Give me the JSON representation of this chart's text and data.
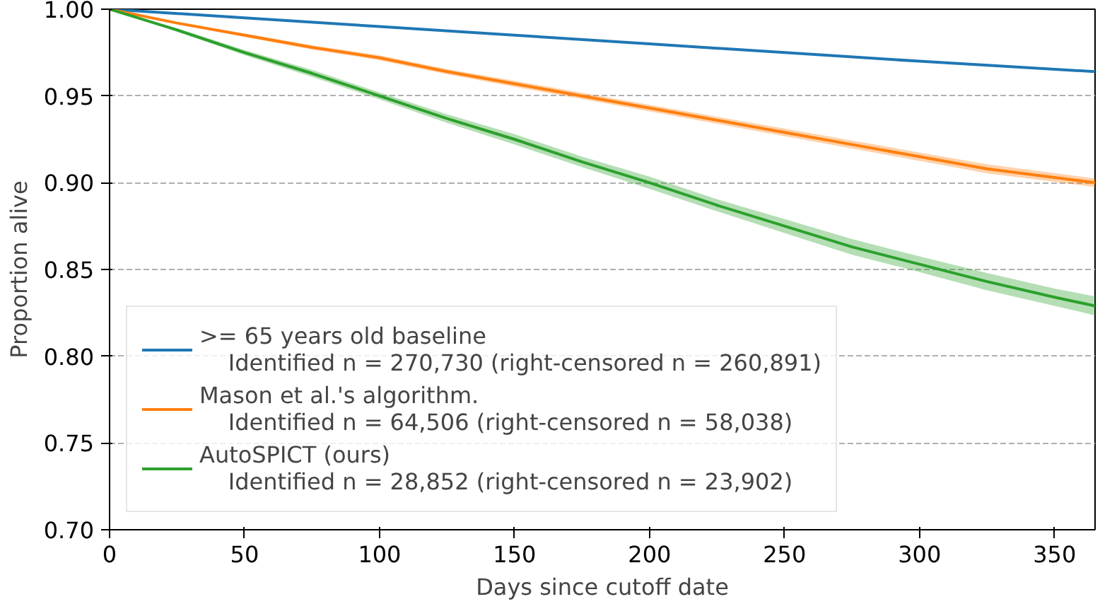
{
  "chart_data": {
    "type": "line",
    "xlabel": "Days since cutoff date",
    "ylabel": "Proportion alive",
    "xlim": [
      0,
      365
    ],
    "ylim": [
      0.7,
      1.0
    ],
    "xticks": [
      0,
      50,
      100,
      150,
      200,
      250,
      300,
      350
    ],
    "yticks": [
      {
        "value": 0.7,
        "label": "0.70"
      },
      {
        "value": 0.75,
        "label": "0.75"
      },
      {
        "value": 0.8,
        "label": "0.80"
      },
      {
        "value": 0.85,
        "label": "0.85"
      },
      {
        "value": 0.9,
        "label": "0.90"
      },
      {
        "value": 0.95,
        "label": "0.95"
      },
      {
        "value": 1.0,
        "label": "1.00"
      }
    ],
    "grid": "y",
    "legend": "bottom left",
    "series": [
      {
        "name": ">= 65 years old baseline\n    Identified n = 270,730 (right-censored n = 260,891)",
        "color": "#1f77b4",
        "x": [
          0,
          50,
          100,
          150,
          200,
          250,
          300,
          365
        ],
        "values": [
          1.0,
          0.995,
          0.99,
          0.985,
          0.98,
          0.975,
          0.97,
          0.964
        ]
      },
      {
        "name": "Mason et al.'s algorithm.\n    Identified n = 64,506 (right-censored n = 58,038)",
        "color": "#ff7f0e",
        "x": [
          0,
          25,
          50,
          75,
          100,
          125,
          150,
          175,
          200,
          225,
          250,
          275,
          300,
          325,
          350,
          365
        ],
        "values": [
          1.0,
          0.992,
          0.985,
          0.978,
          0.972,
          0.964,
          0.957,
          0.95,
          0.943,
          0.936,
          0.929,
          0.922,
          0.915,
          0.908,
          0.903,
          0.9
        ],
        "lower": [
          1.0,
          0.9915,
          0.984,
          0.9768,
          0.9706,
          0.9625,
          0.9553,
          0.9482,
          0.9411,
          0.934,
          0.9268,
          0.9197,
          0.9126,
          0.9054,
          0.9005,
          0.8975
        ],
        "upper": [
          1.0,
          0.9925,
          0.986,
          0.9792,
          0.9734,
          0.9655,
          0.9587,
          0.9518,
          0.9449,
          0.938,
          0.9312,
          0.9243,
          0.9174,
          0.9106,
          0.9055,
          0.9025
        ]
      },
      {
        "name": "AutoSPICT (ours)\n    Identified n = 28,852 (right-censored n = 23,902)",
        "color": "#2ca02c",
        "x": [
          0,
          25,
          50,
          75,
          100,
          125,
          150,
          175,
          200,
          225,
          250,
          275,
          300,
          325,
          350,
          365
        ],
        "values": [
          1.0,
          0.988,
          0.975,
          0.963,
          0.95,
          0.937,
          0.925,
          0.912,
          0.9,
          0.887,
          0.875,
          0.863,
          0.853,
          0.843,
          0.834,
          0.829
        ],
        "lower": [
          1.0,
          0.987,
          0.9735,
          0.961,
          0.948,
          0.9345,
          0.922,
          0.909,
          0.8965,
          0.8835,
          0.871,
          0.8585,
          0.8485,
          0.838,
          0.829,
          0.8235
        ],
        "upper": [
          1.0,
          0.989,
          0.9765,
          0.965,
          0.952,
          0.9395,
          0.928,
          0.915,
          0.9035,
          0.8905,
          0.879,
          0.8675,
          0.8575,
          0.848,
          0.839,
          0.8345
        ]
      }
    ]
  }
}
